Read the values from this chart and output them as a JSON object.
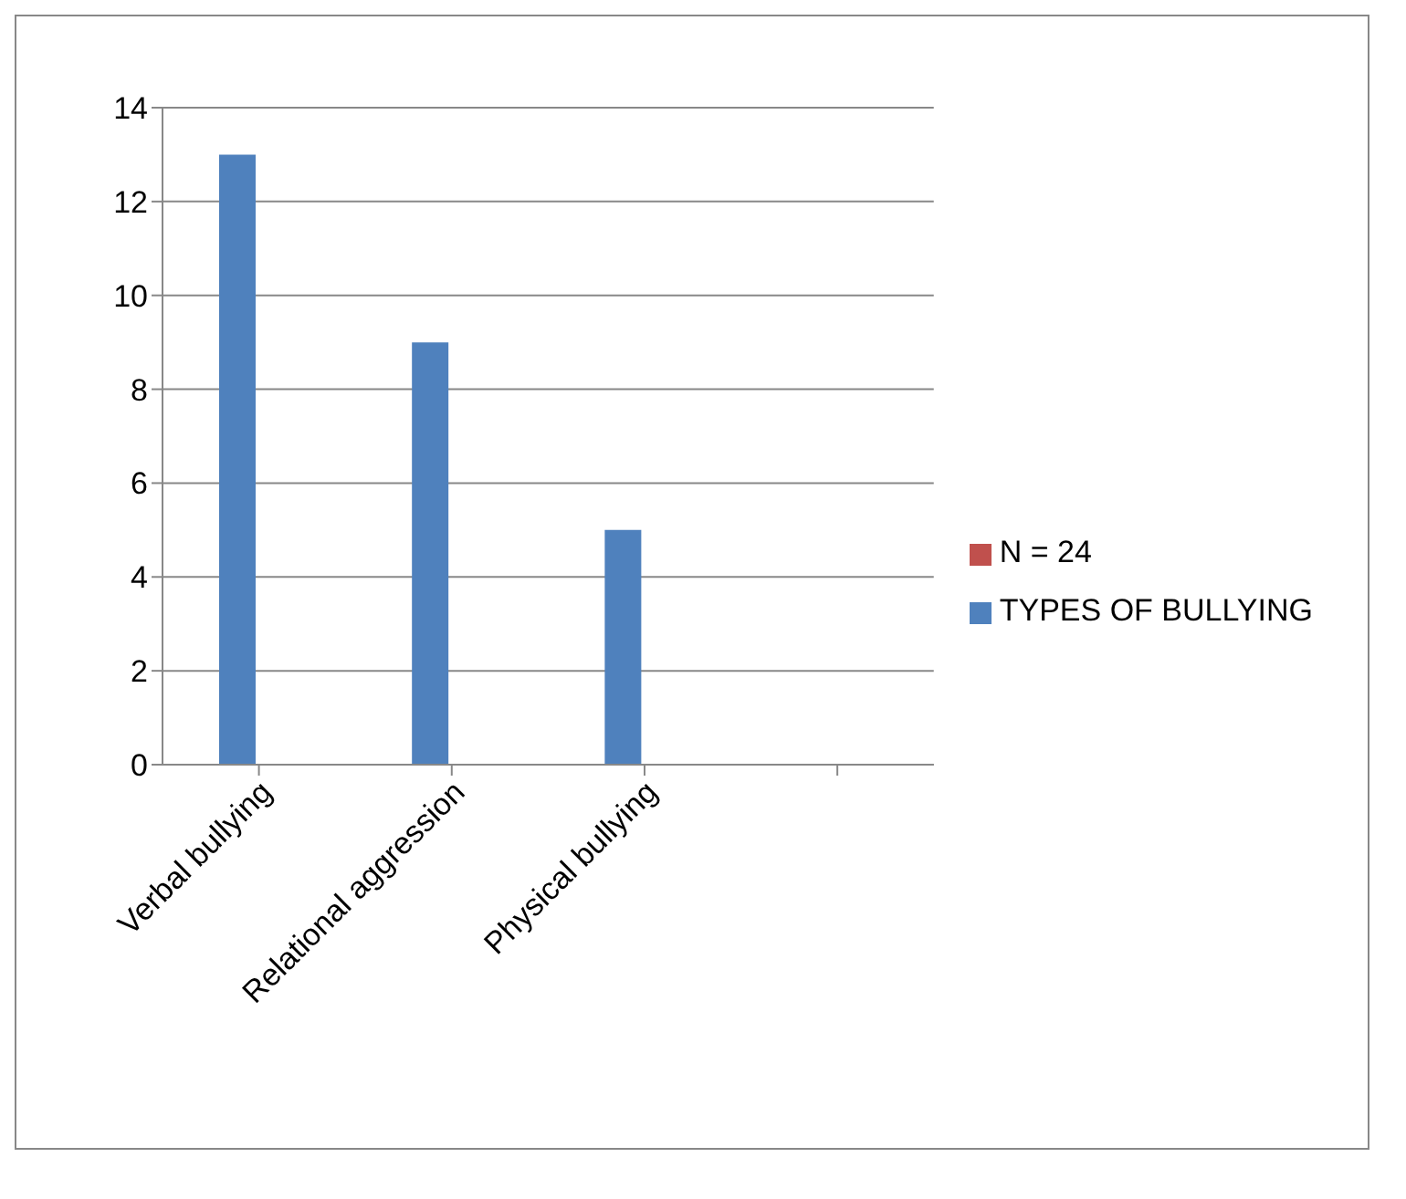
{
  "chart_data": {
    "type": "bar",
    "categories": [
      "Verbal bullying",
      "Relational aggression",
      "Physical bullying",
      null
    ],
    "series": [
      {
        "name": "TYPES OF BULLYING",
        "color": "#4f81bd",
        "values": [
          13,
          9,
          5,
          null
        ]
      },
      {
        "name": "N = 24",
        "color": "#c0504d",
        "values": [
          null,
          null,
          null,
          null
        ]
      }
    ],
    "ylim": [
      0,
      14
    ],
    "yticks": [
      0,
      2,
      4,
      6,
      8,
      10,
      12,
      14
    ],
    "grid": "y",
    "legend": "right"
  }
}
